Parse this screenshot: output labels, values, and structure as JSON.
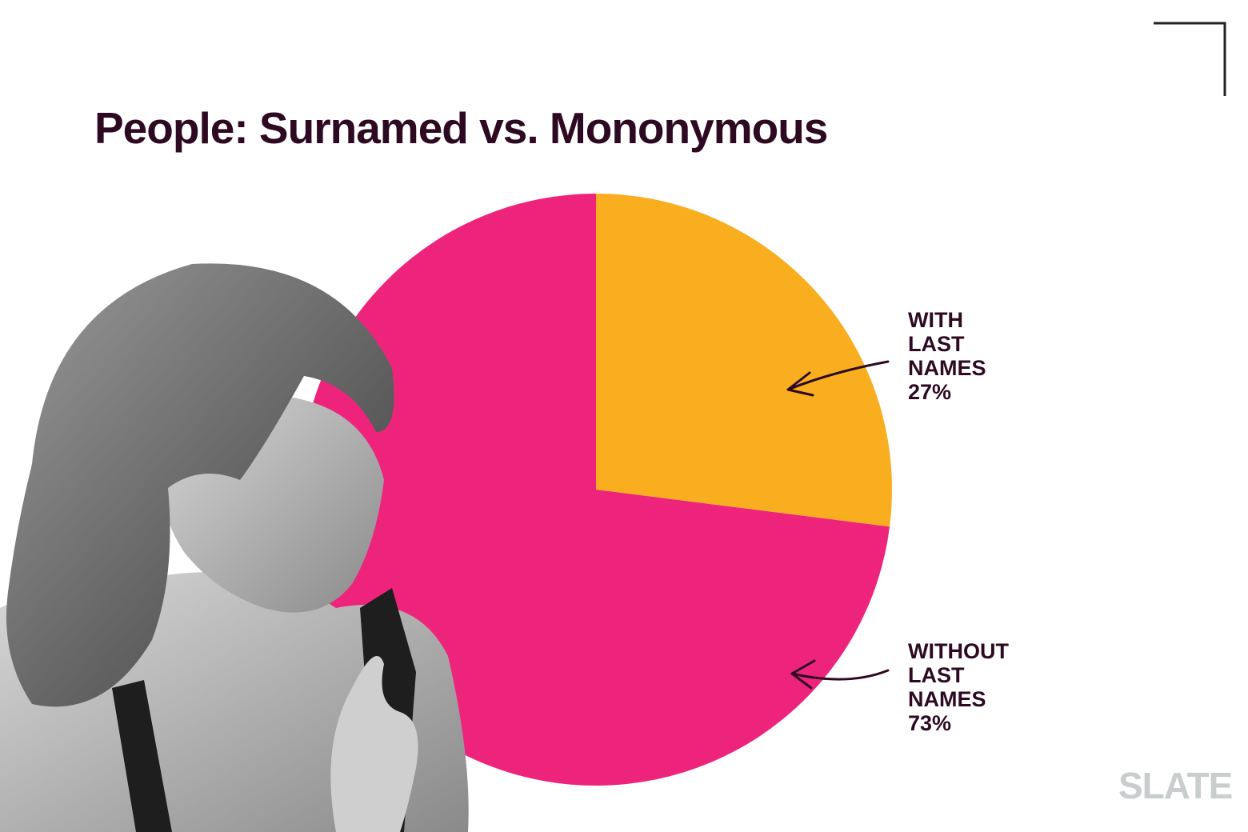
{
  "chart_data": {
    "type": "pie",
    "title": "People: Surnamed vs. Mononymous",
    "categories": [
      "WITH LAST NAMES",
      "WITHOUT LAST NAMES"
    ],
    "values": [
      27,
      73
    ],
    "value_labels": [
      "27%",
      "73%"
    ],
    "colors": [
      "#f8ae1f",
      "#ee247c"
    ]
  },
  "logo": "SLATE"
}
